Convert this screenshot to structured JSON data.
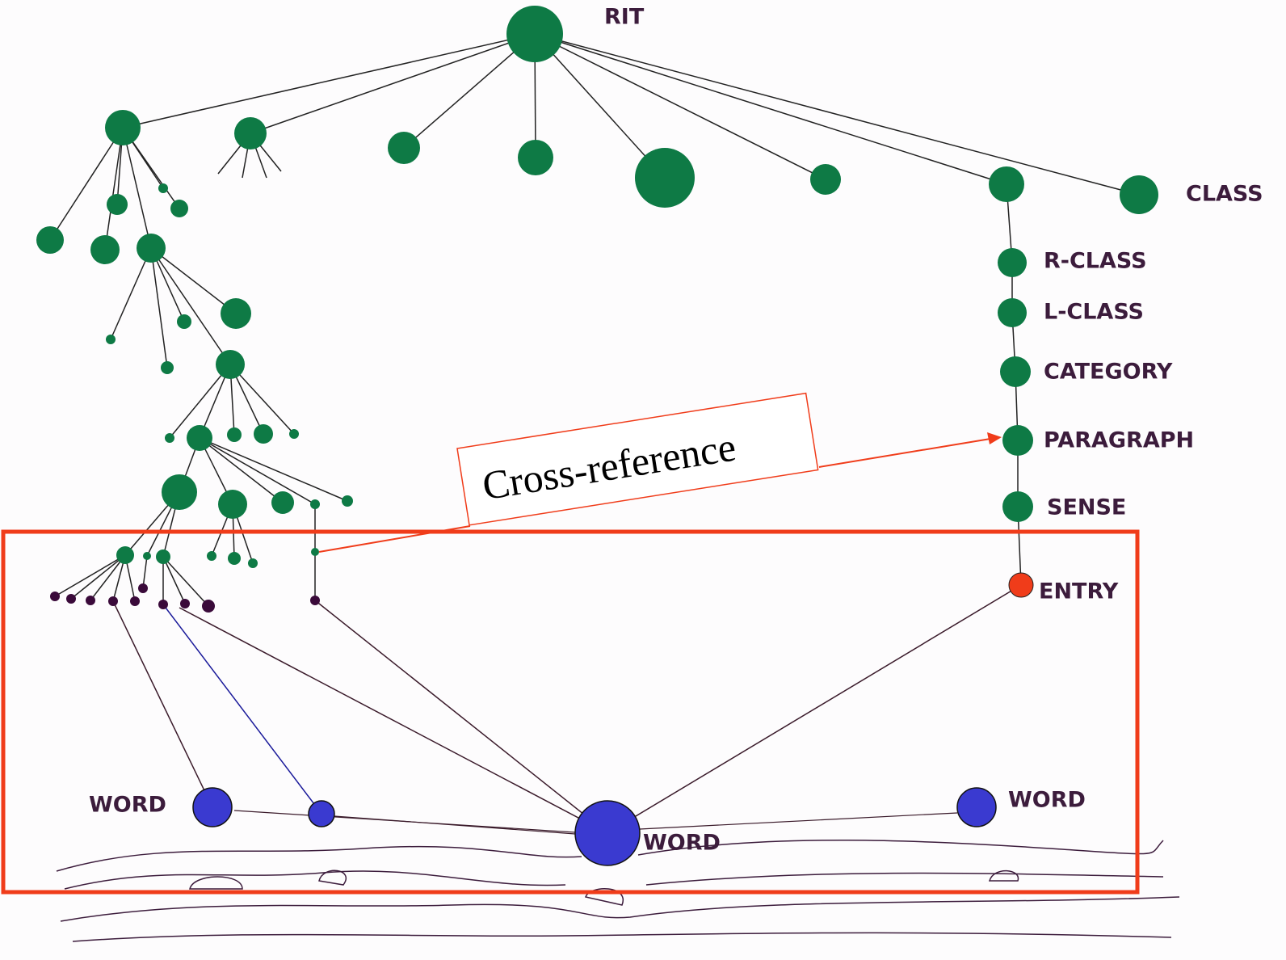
{
  "nodes": {
    "root": "RIT",
    "class": "CLASS",
    "r_class": "R-CLASS",
    "l_class": "L-CLASS",
    "category": "CATEGORY",
    "paragraph": "PARAGRAPH",
    "sense": "SENSE",
    "entry": "ENTRY"
  },
  "words": [
    "WORD",
    "WORD",
    "WORD"
  ],
  "callout": "Cross-reference"
}
